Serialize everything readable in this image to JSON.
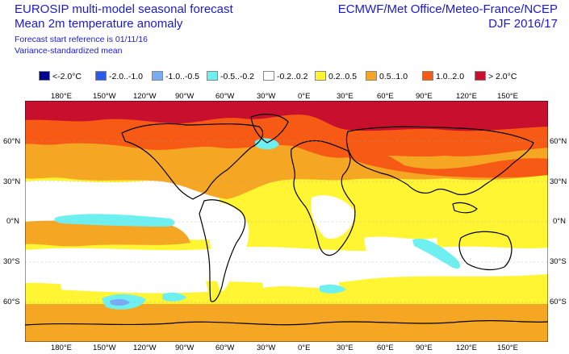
{
  "header": {
    "title_line1": "EUROSIP multi-model seasonal forecast",
    "title_line2": "Mean 2m temperature anomaly",
    "subtitle_line1": "Forecast start reference is 01/11/16",
    "subtitle_line2": "Variance-standardized mean",
    "agencies": "ECMWF/Met Office/Meteo-France/NCEP",
    "season": "DJF 2016/17"
  },
  "legend": [
    {
      "label": "<-2.0°C",
      "color": "#00008c"
    },
    {
      "label": "-2.0..-1.0",
      "color": "#2a5be8"
    },
    {
      "label": "-1.0..-0.5",
      "color": "#78aaf5"
    },
    {
      "label": "-0.5..-0.2",
      "color": "#6ff0f0"
    },
    {
      "label": "-0.2..0.2",
      "color": "#ffffff"
    },
    {
      "label": "0.2..0.5",
      "color": "#fff533"
    },
    {
      "label": "0.5..1.0",
      "color": "#f5a623"
    },
    {
      "label": "1.0..2.0",
      "color": "#f75a14"
    },
    {
      "label": "> 2.0°C",
      "color": "#c8102e"
    }
  ],
  "axes": {
    "lon_labels": [
      "180°E",
      "150°W",
      "120°W",
      "90°W",
      "60°W",
      "30°W",
      "0°E",
      "30°E",
      "60°E",
      "90°E",
      "120°E",
      "150°E"
    ],
    "lat_labels": [
      "60°N",
      "30°N",
      "0°N",
      "30°S",
      "60°S"
    ]
  }
}
